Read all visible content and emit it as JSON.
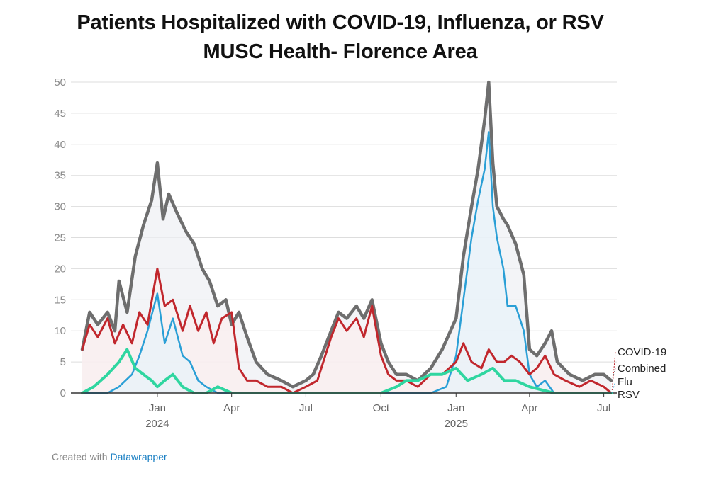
{
  "header": {
    "title_line1": "Patients Hospitalized with COVID-19, Influenza, or RSV",
    "title_line2": "MUSC Health- Florence Area"
  },
  "footer": {
    "created_with": "Created with",
    "tool": "Datawrapper"
  },
  "colors": {
    "combined": "#6e6e6e",
    "covid": "#c1272d",
    "flu": "#2a9fd6",
    "rsv": "#2fd6a0",
    "grid": "#dddddd"
  },
  "chart_data": {
    "type": "line",
    "title": "Patients Hospitalized with COVID-19, Influenza, or RSV",
    "subtitle": "MUSC Health- Florence Area",
    "ylim": [
      0,
      50
    ],
    "yticks": [
      "0",
      "5",
      "10",
      "15",
      "20",
      "25",
      "30",
      "35",
      "40",
      "45",
      "50"
    ],
    "xlim": [
      "2023-10-01",
      "2025-07-10"
    ],
    "xticks": [
      {
        "date": "2024-01-01",
        "label": "Jan",
        "year": "2024"
      },
      {
        "date": "2024-04-01",
        "label": "Apr",
        "year": ""
      },
      {
        "date": "2024-07-01",
        "label": "Jul",
        "year": ""
      },
      {
        "date": "2024-10-01",
        "label": "Oct",
        "year": ""
      },
      {
        "date": "2025-01-01",
        "label": "Jan",
        "year": "2025"
      },
      {
        "date": "2025-04-01",
        "label": "Apr",
        "year": ""
      },
      {
        "date": "2025-07-01",
        "label": "Jul",
        "year": ""
      }
    ],
    "grid": true,
    "legend": "direct labels at right end",
    "series": [
      {
        "name": "Combined",
        "color": "#6e6e6e",
        "points": [
          [
            "2023-10-01",
            7
          ],
          [
            "2023-10-10",
            13
          ],
          [
            "2023-10-20",
            11
          ],
          [
            "2023-11-01",
            13
          ],
          [
            "2023-11-10",
            10
          ],
          [
            "2023-11-15",
            18
          ],
          [
            "2023-11-25",
            13
          ],
          [
            "2023-12-05",
            22
          ],
          [
            "2023-12-15",
            27
          ],
          [
            "2023-12-25",
            31
          ],
          [
            "2024-01-01",
            37
          ],
          [
            "2024-01-08",
            28
          ],
          [
            "2024-01-15",
            32
          ],
          [
            "2024-01-25",
            29
          ],
          [
            "2024-02-05",
            26
          ],
          [
            "2024-02-15",
            24
          ],
          [
            "2024-02-25",
            20
          ],
          [
            "2024-03-05",
            18
          ],
          [
            "2024-03-15",
            14
          ],
          [
            "2024-03-25",
            15
          ],
          [
            "2024-04-01",
            11
          ],
          [
            "2024-04-10",
            13
          ],
          [
            "2024-04-20",
            9
          ],
          [
            "2024-05-01",
            5
          ],
          [
            "2024-05-15",
            3
          ],
          [
            "2024-06-01",
            2
          ],
          [
            "2024-06-15",
            1
          ],
          [
            "2024-07-01",
            2
          ],
          [
            "2024-07-10",
            3
          ],
          [
            "2024-07-20",
            6
          ],
          [
            "2024-08-01",
            10
          ],
          [
            "2024-08-10",
            13
          ],
          [
            "2024-08-20",
            12
          ],
          [
            "2024-09-01",
            14
          ],
          [
            "2024-09-10",
            12
          ],
          [
            "2024-09-20",
            15
          ],
          [
            "2024-10-01",
            8
          ],
          [
            "2024-10-10",
            5
          ],
          [
            "2024-10-20",
            3
          ],
          [
            "2024-11-01",
            3
          ],
          [
            "2024-11-15",
            2
          ],
          [
            "2024-12-01",
            4
          ],
          [
            "2024-12-15",
            7
          ],
          [
            "2025-01-01",
            12
          ],
          [
            "2025-01-10",
            22
          ],
          [
            "2025-01-20",
            30
          ],
          [
            "2025-01-28",
            36
          ],
          [
            "2025-02-05",
            44
          ],
          [
            "2025-02-10",
            50
          ],
          [
            "2025-02-15",
            37
          ],
          [
            "2025-02-20",
            30
          ],
          [
            "2025-02-28",
            28
          ],
          [
            "2025-03-05",
            27
          ],
          [
            "2025-03-15",
            24
          ],
          [
            "2025-03-25",
            19
          ],
          [
            "2025-04-01",
            7
          ],
          [
            "2025-04-10",
            6
          ],
          [
            "2025-04-20",
            8
          ],
          [
            "2025-04-28",
            10
          ],
          [
            "2025-05-05",
            5
          ],
          [
            "2025-05-20",
            3
          ],
          [
            "2025-06-05",
            2
          ],
          [
            "2025-06-20",
            3
          ],
          [
            "2025-07-01",
            3
          ],
          [
            "2025-07-10",
            2
          ]
        ]
      },
      {
        "name": "COVID-19",
        "color": "#c1272d",
        "points": [
          [
            "2023-10-01",
            7
          ],
          [
            "2023-10-10",
            11
          ],
          [
            "2023-10-20",
            9
          ],
          [
            "2023-11-01",
            12
          ],
          [
            "2023-11-10",
            8
          ],
          [
            "2023-11-20",
            11
          ],
          [
            "2023-12-01",
            8
          ],
          [
            "2023-12-10",
            13
          ],
          [
            "2023-12-20",
            11
          ],
          [
            "2024-01-01",
            20
          ],
          [
            "2024-01-10",
            14
          ],
          [
            "2024-01-20",
            15
          ],
          [
            "2024-02-01",
            10
          ],
          [
            "2024-02-10",
            14
          ],
          [
            "2024-02-20",
            10
          ],
          [
            "2024-03-01",
            13
          ],
          [
            "2024-03-10",
            8
          ],
          [
            "2024-03-20",
            12
          ],
          [
            "2024-04-01",
            13
          ],
          [
            "2024-04-10",
            4
          ],
          [
            "2024-04-20",
            2
          ],
          [
            "2024-05-01",
            2
          ],
          [
            "2024-05-15",
            1
          ],
          [
            "2024-06-01",
            1
          ],
          [
            "2024-06-15",
            0
          ],
          [
            "2024-07-01",
            1
          ],
          [
            "2024-07-15",
            2
          ],
          [
            "2024-08-01",
            9
          ],
          [
            "2024-08-10",
            12
          ],
          [
            "2024-08-20",
            10
          ],
          [
            "2024-09-01",
            12
          ],
          [
            "2024-09-10",
            9
          ],
          [
            "2024-09-20",
            14
          ],
          [
            "2024-10-01",
            6
          ],
          [
            "2024-10-10",
            3
          ],
          [
            "2024-10-20",
            2
          ],
          [
            "2024-11-01",
            2
          ],
          [
            "2024-11-15",
            1
          ],
          [
            "2024-12-01",
            3
          ],
          [
            "2024-12-15",
            3
          ],
          [
            "2025-01-01",
            5
          ],
          [
            "2025-01-10",
            8
          ],
          [
            "2025-01-20",
            5
          ],
          [
            "2025-02-01",
            4
          ],
          [
            "2025-02-10",
            7
          ],
          [
            "2025-02-20",
            5
          ],
          [
            "2025-03-01",
            5
          ],
          [
            "2025-03-10",
            6
          ],
          [
            "2025-03-20",
            5
          ],
          [
            "2025-04-01",
            3
          ],
          [
            "2025-04-10",
            4
          ],
          [
            "2025-04-20",
            6
          ],
          [
            "2025-05-01",
            3
          ],
          [
            "2025-05-15",
            2
          ],
          [
            "2025-06-01",
            1
          ],
          [
            "2025-06-15",
            2
          ],
          [
            "2025-07-01",
            1
          ],
          [
            "2025-07-10",
            0
          ]
        ]
      },
      {
        "name": "Flu",
        "color": "#2a9fd6",
        "points": [
          [
            "2023-10-01",
            0
          ],
          [
            "2023-11-01",
            0
          ],
          [
            "2023-11-15",
            1
          ],
          [
            "2023-12-01",
            3
          ],
          [
            "2023-12-10",
            6
          ],
          [
            "2023-12-20",
            10
          ],
          [
            "2024-01-01",
            16
          ],
          [
            "2024-01-10",
            8
          ],
          [
            "2024-01-20",
            12
          ],
          [
            "2024-02-01",
            6
          ],
          [
            "2024-02-10",
            5
          ],
          [
            "2024-02-20",
            2
          ],
          [
            "2024-03-01",
            1
          ],
          [
            "2024-03-15",
            0
          ],
          [
            "2024-04-01",
            0
          ],
          [
            "2024-10-01",
            0
          ],
          [
            "2024-12-01",
            0
          ],
          [
            "2024-12-20",
            1
          ],
          [
            "2025-01-01",
            6
          ],
          [
            "2025-01-10",
            15
          ],
          [
            "2025-01-20",
            25
          ],
          [
            "2025-01-28",
            31
          ],
          [
            "2025-02-05",
            36
          ],
          [
            "2025-02-10",
            42
          ],
          [
            "2025-02-15",
            30
          ],
          [
            "2025-02-20",
            25
          ],
          [
            "2025-02-28",
            20
          ],
          [
            "2025-03-05",
            14
          ],
          [
            "2025-03-15",
            14
          ],
          [
            "2025-03-25",
            10
          ],
          [
            "2025-04-01",
            3
          ],
          [
            "2025-04-10",
            1
          ],
          [
            "2025-04-20",
            2
          ],
          [
            "2025-05-01",
            0
          ],
          [
            "2025-06-01",
            0
          ],
          [
            "2025-07-10",
            0
          ]
        ]
      },
      {
        "name": "RSV",
        "color": "#2fd6a0",
        "points": [
          [
            "2023-10-01",
            0
          ],
          [
            "2023-10-15",
            1
          ],
          [
            "2023-11-01",
            3
          ],
          [
            "2023-11-15",
            5
          ],
          [
            "2023-11-25",
            7
          ],
          [
            "2023-12-05",
            4
          ],
          [
            "2023-12-15",
            3
          ],
          [
            "2023-12-25",
            2
          ],
          [
            "2024-01-01",
            1
          ],
          [
            "2024-01-10",
            2
          ],
          [
            "2024-01-20",
            3
          ],
          [
            "2024-02-01",
            1
          ],
          [
            "2024-02-15",
            0
          ],
          [
            "2024-03-01",
            0
          ],
          [
            "2024-03-15",
            1
          ],
          [
            "2024-04-01",
            0
          ],
          [
            "2024-10-01",
            0
          ],
          [
            "2024-10-20",
            1
          ],
          [
            "2024-11-01",
            2
          ],
          [
            "2024-11-15",
            2
          ],
          [
            "2024-12-01",
            3
          ],
          [
            "2024-12-15",
            3
          ],
          [
            "2025-01-01",
            4
          ],
          [
            "2025-01-15",
            2
          ],
          [
            "2025-02-01",
            3
          ],
          [
            "2025-02-15",
            4
          ],
          [
            "2025-03-01",
            2
          ],
          [
            "2025-03-15",
            2
          ],
          [
            "2025-04-01",
            1
          ],
          [
            "2025-05-01",
            0
          ],
          [
            "2025-07-10",
            0
          ]
        ]
      }
    ],
    "end_labels": [
      {
        "series": "COVID-19",
        "text": "COVID-19"
      },
      {
        "series": "Combined",
        "text": "Combined"
      },
      {
        "series": "Flu",
        "text": "Flu"
      },
      {
        "series": "RSV",
        "text": "RSV"
      }
    ]
  }
}
